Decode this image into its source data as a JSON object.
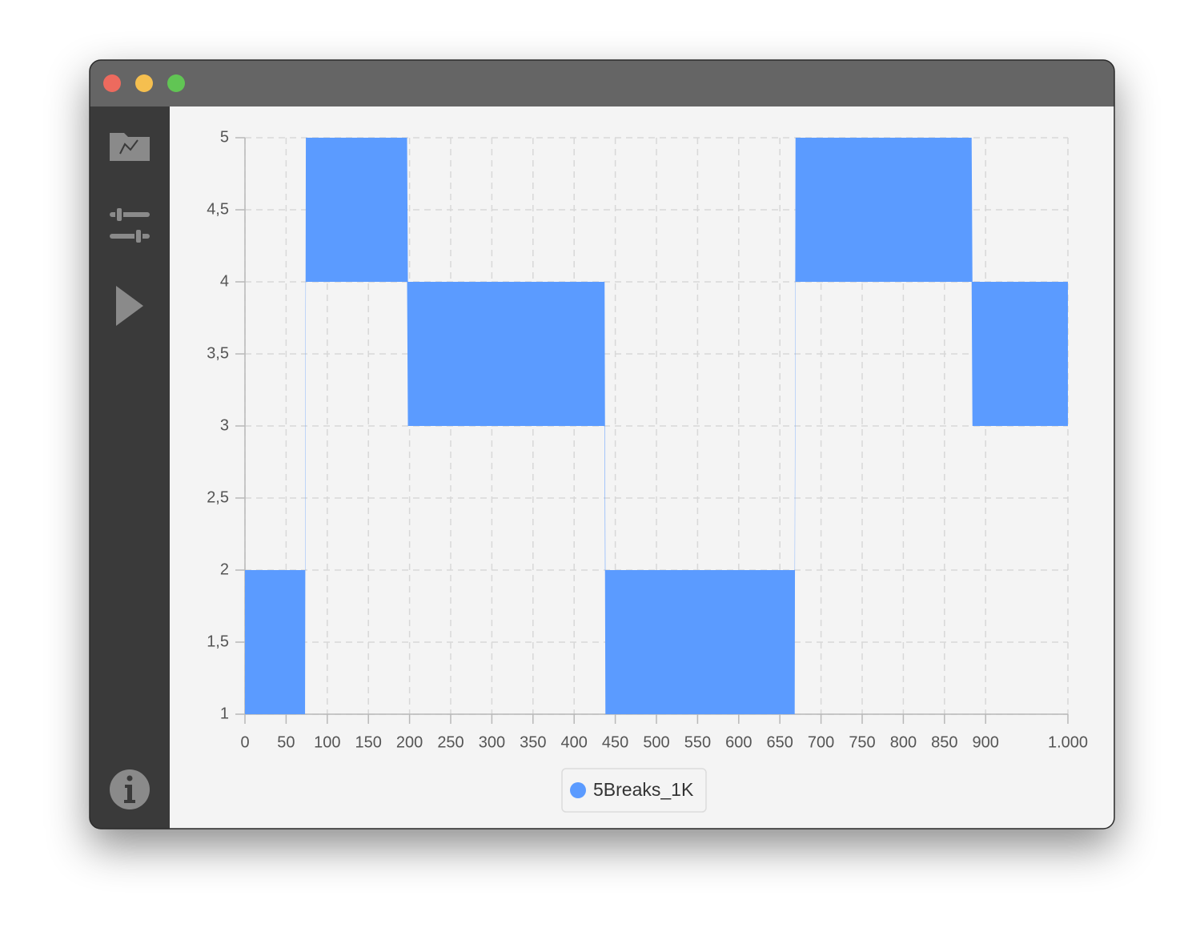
{
  "chart_data": {
    "type": "range",
    "series": [
      {
        "name": "5Breaks_1K",
        "color": "#5b9bff",
        "x": [
          0,
          73,
          74,
          197,
          198,
          437,
          438,
          668,
          669,
          883,
          884,
          1000
        ],
        "low": [
          1,
          1,
          4,
          4,
          3,
          3,
          1,
          1,
          4,
          4,
          3,
          3
        ],
        "high": [
          2,
          2,
          5,
          5,
          4,
          4,
          2,
          2,
          5,
          5,
          4,
          4
        ]
      }
    ],
    "xlim": [
      0,
      1000
    ],
    "xticks": [
      0,
      50,
      100,
      150,
      200,
      250,
      300,
      350,
      400,
      450,
      500,
      550,
      600,
      650,
      700,
      750,
      800,
      850,
      900,
      {
        "value": 1000,
        "label": "1.000"
      }
    ],
    "ylim": [
      1,
      5
    ],
    "yticks": [
      1,
      {
        "value": 1.5,
        "label": "1,5"
      },
      2,
      {
        "value": 2.5,
        "label": "2,5"
      },
      3,
      {
        "value": 3.5,
        "label": "3,5"
      },
      4,
      {
        "value": 4.5,
        "label": "4,5"
      },
      5
    ],
    "grid": true,
    "legend": "bottom"
  }
}
